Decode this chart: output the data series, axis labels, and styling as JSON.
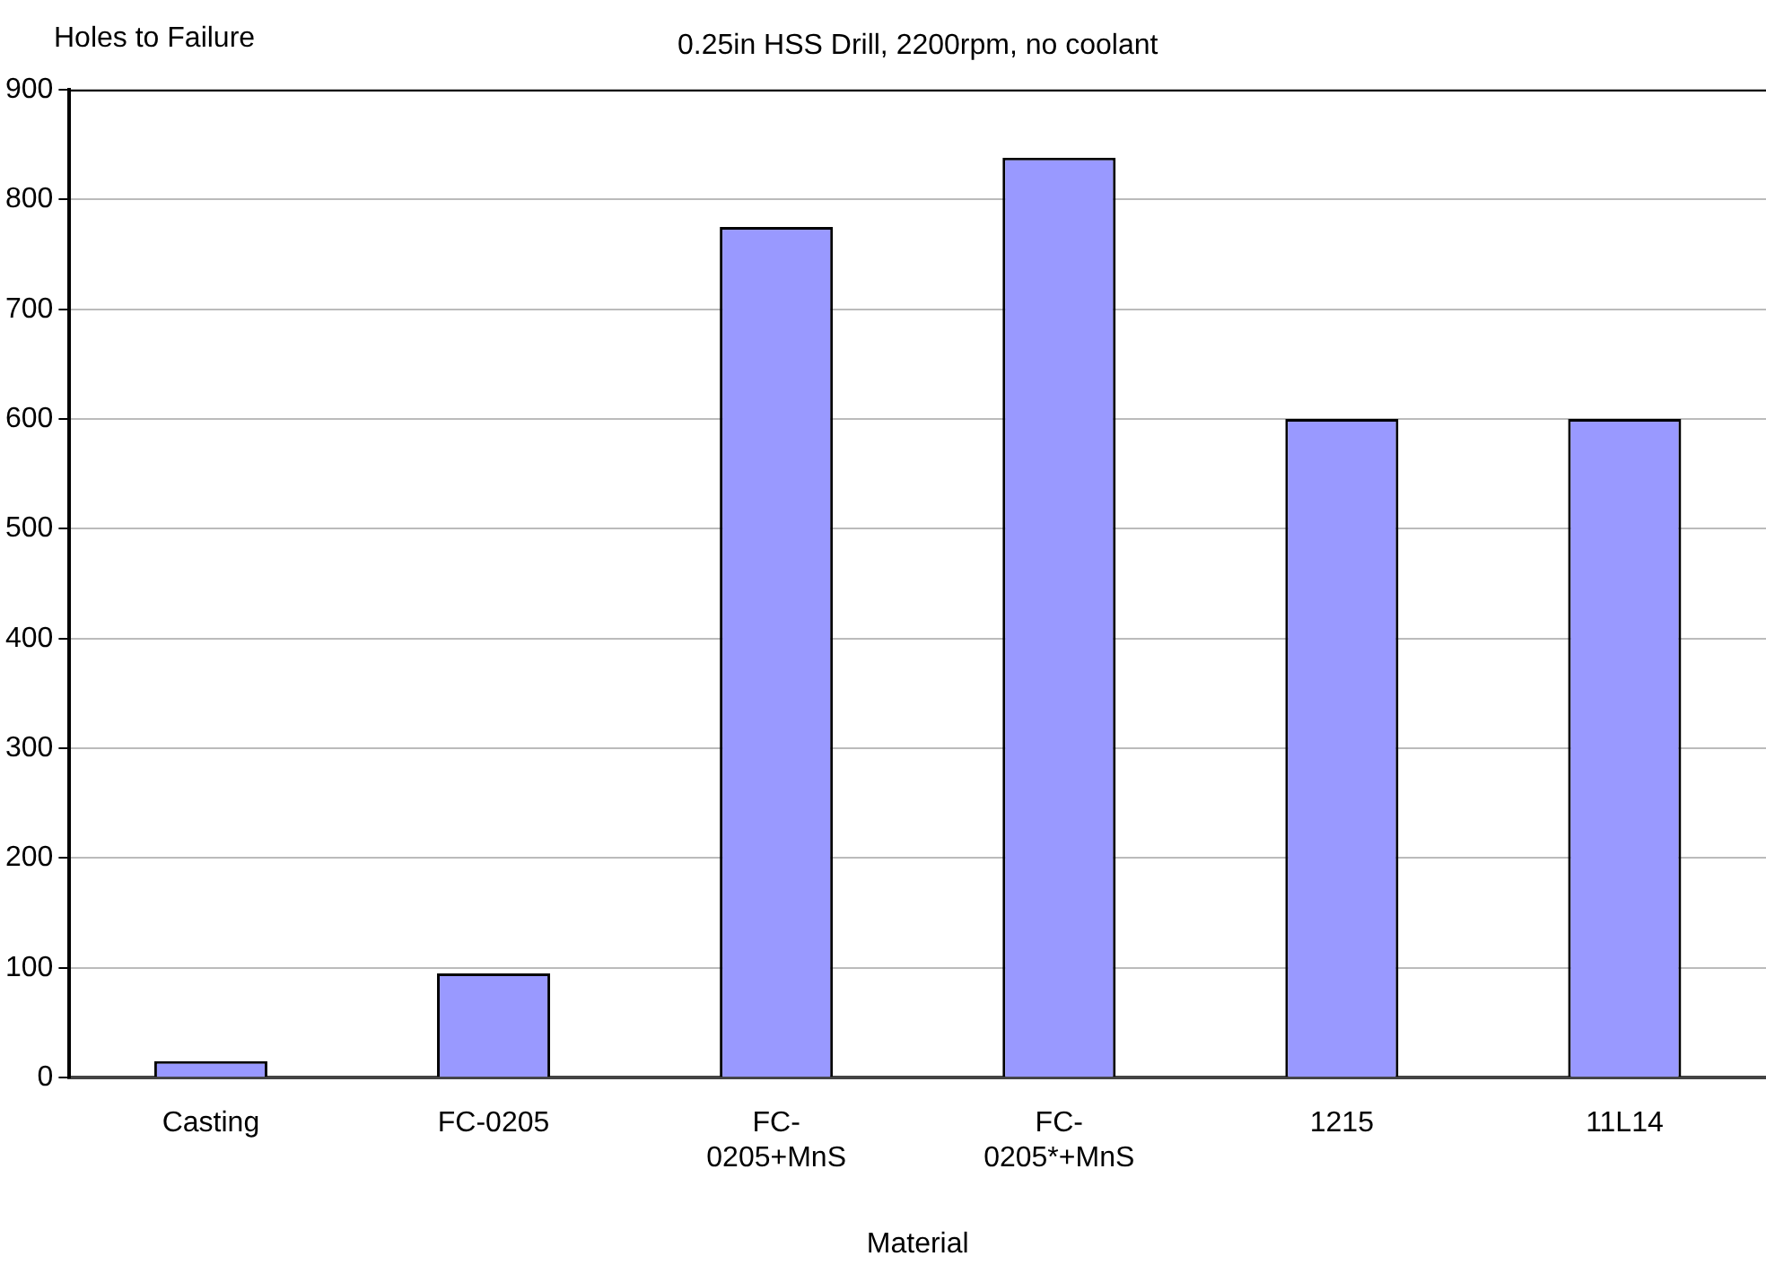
{
  "chart_data": {
    "type": "bar",
    "title": "0.25in HSS Drill, 2200rpm, no coolant",
    "ylabel": "Holes to Failure",
    "xlabel": "Material",
    "categories": [
      "Casting",
      "FC-0205",
      "FC-0205+MnS",
      "FC-0205*+MnS",
      "1215",
      "11L14"
    ],
    "values": [
      15,
      95,
      775,
      838,
      600,
      600
    ],
    "color": "#9999ff",
    "ylim": [
      0,
      900
    ],
    "yticks": [
      0,
      100,
      200,
      300,
      400,
      500,
      600,
      700,
      800,
      900
    ],
    "grid": "y",
    "legend": false
  }
}
